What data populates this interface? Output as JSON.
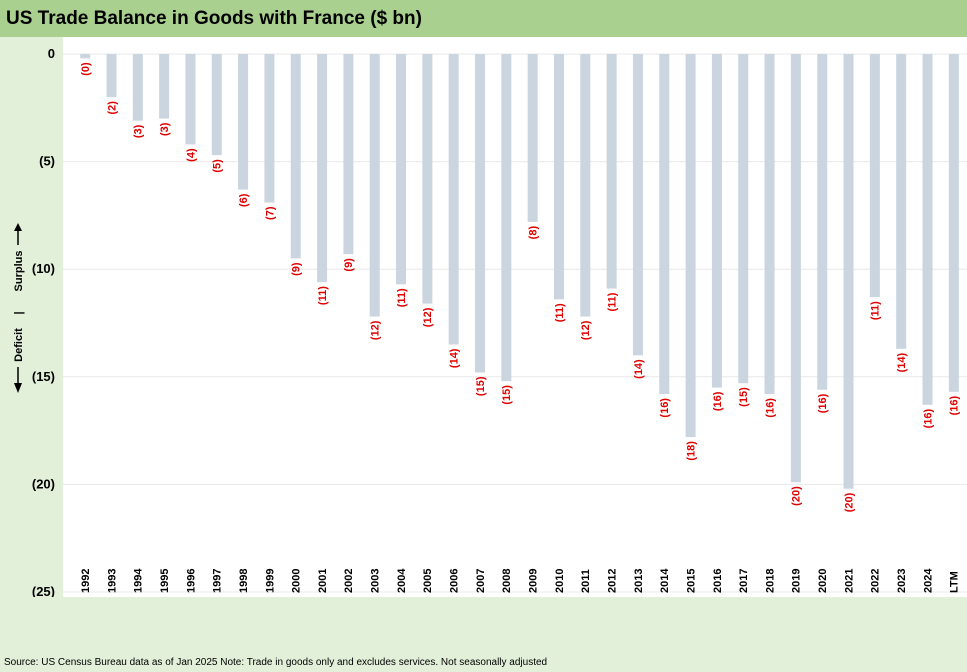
{
  "title": "US Trade Balance in Goods with France ($ bn)",
  "source": "Source: US Census Bureau data as of Jan 2025 Note: Trade in goods only and excludes services. Not seasonally adjusted",
  "annotation": {
    "surplus": "Surplus",
    "separator": "|",
    "deficit": "Deficit"
  },
  "colors": {
    "bar": "#cbd5df",
    "data_label": "#e00000",
    "title_bg": "#a9d08e",
    "page_bg": "#e2efd9"
  },
  "chart_data": {
    "type": "bar",
    "title": "US Trade Balance in Goods with France ($ bn)",
    "xlabel": "",
    "ylabel": "",
    "ylim": [
      -25,
      0
    ],
    "grid": true,
    "y_ticks": [
      0,
      -5,
      -10,
      -15,
      -20,
      -25
    ],
    "y_tick_labels": [
      "0",
      "(5)",
      "(10)",
      "(15)",
      "(20)",
      "(25)"
    ],
    "categories": [
      "1992",
      "1993",
      "1994",
      "1995",
      "1996",
      "1997",
      "1998",
      "1999",
      "2000",
      "2001",
      "2002",
      "2003",
      "2004",
      "2005",
      "2006",
      "2007",
      "2008",
      "2009",
      "2010",
      "2011",
      "2012",
      "2013",
      "2014",
      "2015",
      "2016",
      "2017",
      "2018",
      "2019",
      "2020",
      "2021",
      "2022",
      "2023",
      "2024",
      "LTM"
    ],
    "values": [
      -0.2,
      -2.0,
      -3.1,
      -3.0,
      -4.2,
      -4.7,
      -6.3,
      -6.9,
      -9.5,
      -10.6,
      -9.3,
      -12.2,
      -10.7,
      -11.6,
      -13.5,
      -14.8,
      -15.2,
      -7.8,
      -11.4,
      -12.2,
      -10.9,
      -14.0,
      -15.8,
      -17.8,
      -15.5,
      -15.3,
      -15.8,
      -19.9,
      -15.6,
      -20.2,
      -11.3,
      -13.7,
      -16.3,
      -15.7
    ],
    "data_labels": [
      "(0)",
      "(2)",
      "(3)",
      "(3)",
      "(4)",
      "(5)",
      "(6)",
      "(7)",
      "(9)",
      "(11)",
      "(9)",
      "(12)",
      "(11)",
      "(12)",
      "(14)",
      "(15)",
      "(15)",
      "(8)",
      "(11)",
      "(12)",
      "(11)",
      "(14)",
      "(16)",
      "(18)",
      "(16)",
      "(15)",
      "(16)",
      "(20)",
      "(16)",
      "(20)",
      "(11)",
      "(14)",
      "(16)",
      "(16)"
    ]
  }
}
